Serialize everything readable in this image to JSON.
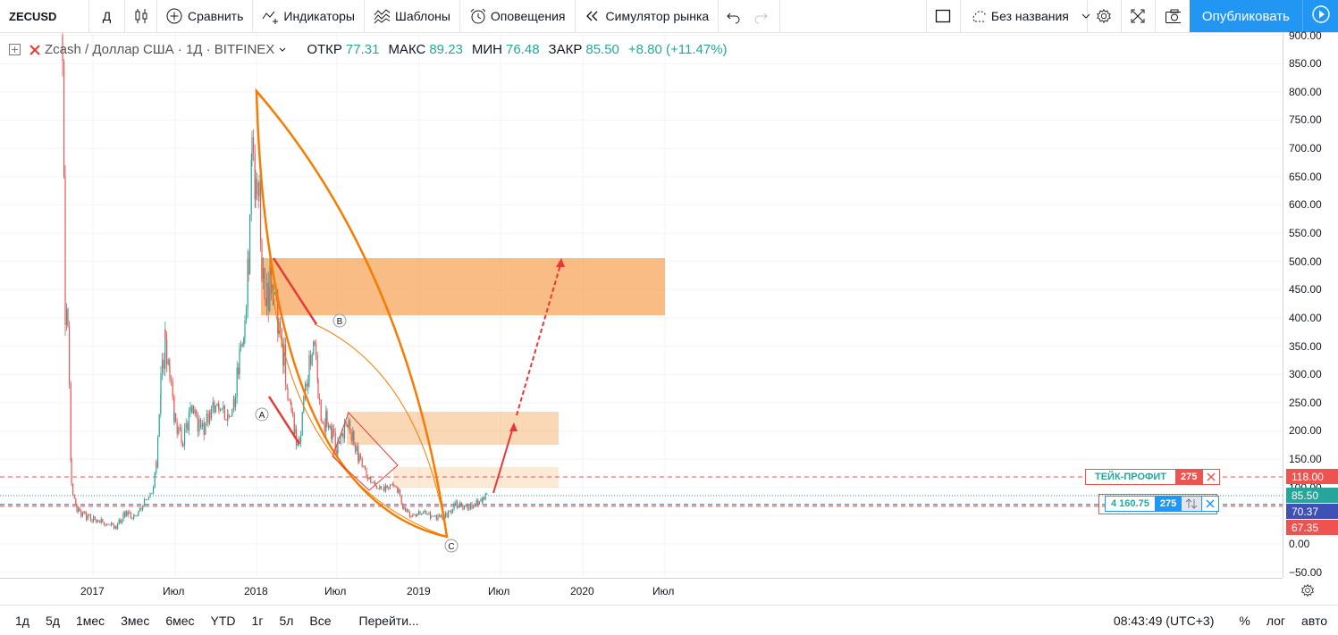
{
  "toolbar": {
    "symbol": "ZECUSD",
    "interval": "Д",
    "compare": "Сравнить",
    "indicators": "Индикаторы",
    "templates": "Шаблоны",
    "alerts": "Оповещения",
    "replay": "Симулятор рынка",
    "layout_name": "Без названия",
    "publish": "Опубликовать"
  },
  "legend": {
    "title": "Zcash / Доллар США · 1Д · BITFINEX",
    "open_label": "ОТКР",
    "open": "77.31",
    "high_label": "МАКС",
    "high": "89.23",
    "low_label": "МИН",
    "low": "76.48",
    "close_label": "ЗАКР",
    "close": "85.50",
    "change": "+8.80 (+11.47%)"
  },
  "price_axis": {
    "ticks": [
      "900.00",
      "850.00",
      "800.00",
      "750.00",
      "700.00",
      "650.00",
      "600.00",
      "550.00",
      "500.00",
      "450.00",
      "400.00",
      "350.00",
      "300.00",
      "250.00",
      "200.00",
      "150.00",
      "100.00",
      "50.00",
      "0.00",
      "−50.00"
    ],
    "labels": {
      "take_profit": "118.00",
      "last": "85.50",
      "entry": "70.37",
      "stop": "67.35"
    }
  },
  "time_axis": {
    "ticks": [
      "2017",
      "Июл",
      "2018",
      "Июл",
      "2019",
      "Июл",
      "2020",
      "Июл"
    ]
  },
  "orders": {
    "tp_label": "ТЕЙК-ПРОФИТ",
    "tp_qty": "275",
    "pos_value": "4 160.75",
    "pos_qty": "275"
  },
  "drawing_labels": {
    "a": "A",
    "b": "B",
    "c": "C"
  },
  "bottom": {
    "ranges": [
      "1д",
      "5д",
      "1мес",
      "3мес",
      "6мес",
      "YTD",
      "1г",
      "5л",
      "Все"
    ],
    "goto": "Перейти...",
    "clock": "08:43:49 (UTC+3)",
    "percent": "%",
    "log": "лог",
    "auto": "авто"
  },
  "colors": {
    "up": "#26a69a",
    "down": "#ef5350",
    "accent": "#2196f3",
    "pattern": "#f57c00",
    "zone": "#f5a65b"
  }
}
